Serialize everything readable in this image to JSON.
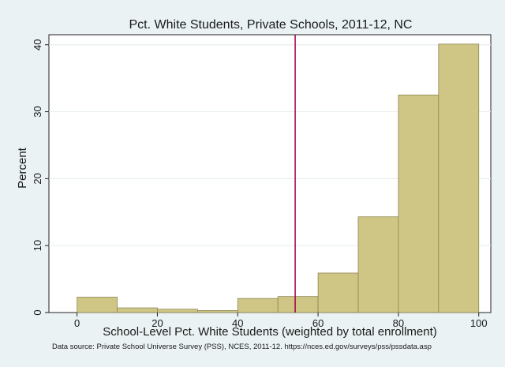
{
  "chart_data": {
    "type": "bar",
    "title": "Pct. White Students, Private Schools, 2011-12, NC",
    "xlabel": "School-Level Pct. White Students (weighted by total enrollment)",
    "ylabel": "Percent",
    "note": "Data source: Private School Universe Survey (PSS), NCES, 2011-12. https://nces.ed.gov/surveys/pss/pssdata.asp",
    "xlim": [
      -7,
      103
    ],
    "ylim": [
      0,
      41.5
    ],
    "xticks": [
      "0",
      "20",
      "40",
      "60",
      "80",
      "100"
    ],
    "yticks": [
      "0",
      "10",
      "20",
      "30",
      "40"
    ],
    "bins": [
      {
        "start": 0,
        "end": 10,
        "value": 2.3
      },
      {
        "start": 10,
        "end": 20,
        "value": 0.7
      },
      {
        "start": 20,
        "end": 30,
        "value": 0.5
      },
      {
        "start": 30,
        "end": 40,
        "value": 0.3
      },
      {
        "start": 40,
        "end": 50,
        "value": 2.1
      },
      {
        "start": 50,
        "end": 60,
        "value": 2.4
      },
      {
        "start": 60,
        "end": 70,
        "value": 5.9
      },
      {
        "start": 70,
        "end": 80,
        "value": 14.3
      },
      {
        "start": 80,
        "end": 90,
        "value": 32.5
      },
      {
        "start": 90,
        "end": 100,
        "value": 40.1
      }
    ],
    "reference_line": {
      "x": 54.3,
      "color": "#a3004b"
    },
    "bar_color": "#cfc584",
    "bar_edge": "#8e8757",
    "grid": true
  }
}
